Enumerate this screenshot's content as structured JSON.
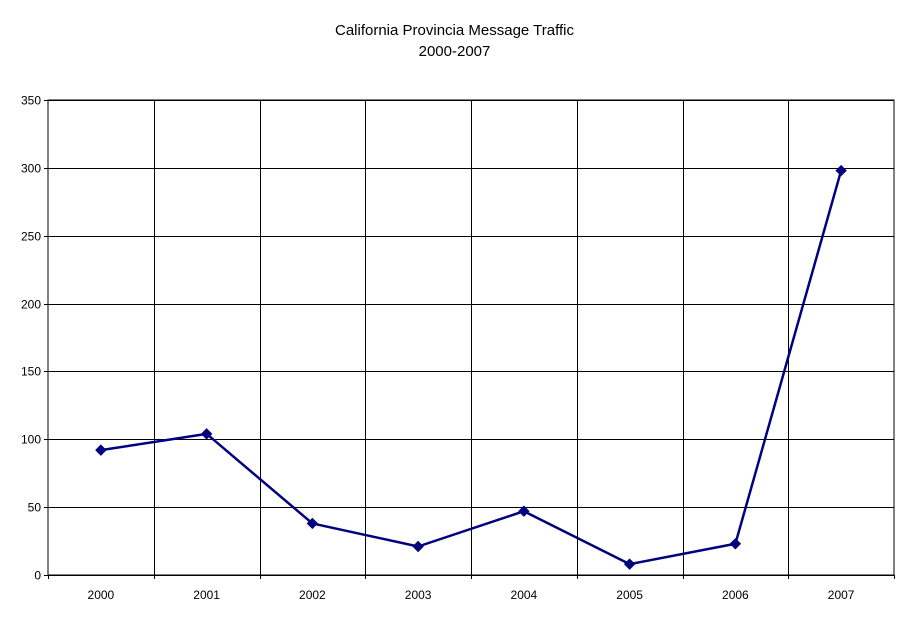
{
  "chart_data": {
    "type": "line",
    "title": "California Provincia Message Traffic",
    "subtitle": "2000-2007",
    "xlabel": "",
    "ylabel": "",
    "categories": [
      "2000",
      "2001",
      "2002",
      "2003",
      "2004",
      "2005",
      "2006",
      "2007"
    ],
    "series": [
      {
        "values": [
          92,
          104,
          38,
          21,
          47,
          8,
          23,
          298
        ],
        "color": "#000080",
        "marker": "diamond"
      }
    ],
    "ylim": [
      0,
      350
    ],
    "yticks": [
      0,
      50,
      100,
      150,
      200,
      250,
      300,
      350
    ],
    "grid": true,
    "legend": "none"
  }
}
